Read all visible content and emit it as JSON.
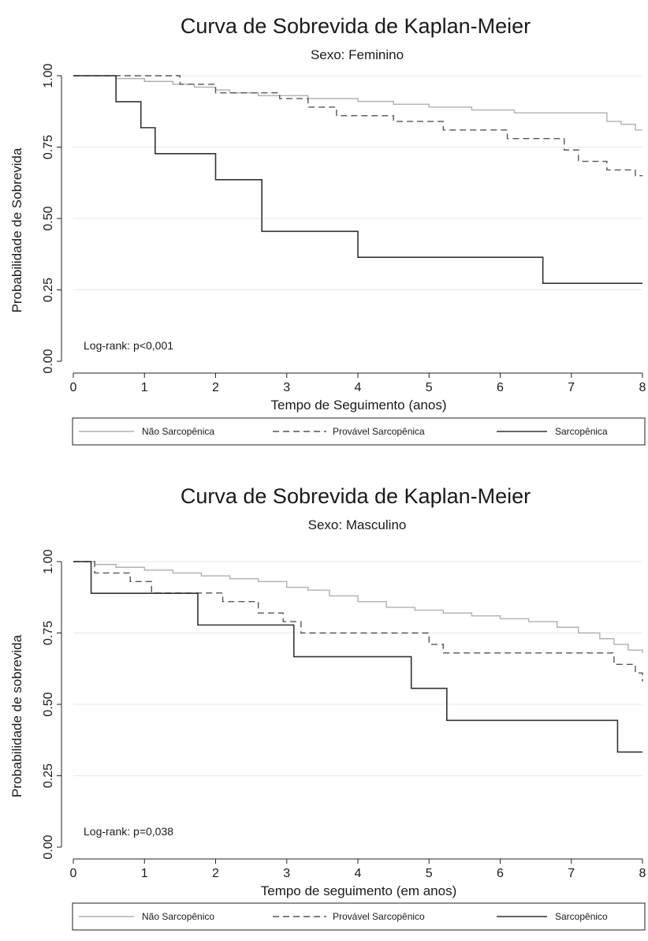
{
  "chart_data": [
    {
      "type": "line",
      "title": "Curva de Sobrevida de Kaplan-Meier",
      "subtitle": "Sexo: Feminino",
      "xlabel": "Tempo de Seguimento (anos)",
      "ylabel": "Probabilidade de Sobrevida",
      "xlim": [
        0,
        8
      ],
      "ylim": [
        0,
        1
      ],
      "x_ticks": [
        "0",
        "1",
        "2",
        "3",
        "4",
        "5",
        "6",
        "7",
        "8"
      ],
      "y_ticks": [
        "0.00",
        "0.25",
        "0.50",
        "0.75",
        "1.00"
      ],
      "grid": true,
      "legend_position": "bottom",
      "annotation": "Log-rank: p<0,001",
      "series": [
        {
          "name": "Não Sarcopênica",
          "style": "solid",
          "color": "#b0b0b0",
          "x": [
            0,
            0.6,
            1.0,
            1.4,
            1.7,
            2.0,
            2.2,
            2.6,
            3.0,
            3.3,
            3.6,
            4.0,
            4.2,
            4.5,
            4.8,
            5.0,
            5.3,
            5.6,
            5.9,
            6.2,
            6.5,
            7.5,
            7.7,
            7.9,
            8.0
          ],
          "y": [
            1.0,
            0.99,
            0.98,
            0.97,
            0.96,
            0.95,
            0.94,
            0.93,
            0.93,
            0.92,
            0.92,
            0.91,
            0.91,
            0.9,
            0.9,
            0.89,
            0.89,
            0.88,
            0.88,
            0.87,
            0.87,
            0.84,
            0.83,
            0.81,
            0.81
          ]
        },
        {
          "name": "Provável Sarcopênica",
          "style": "dashed",
          "color": "#555555",
          "x": [
            0,
            1.5,
            1.7,
            2.0,
            2.9,
            3.3,
            3.7,
            4.5,
            5.2,
            6.1,
            6.9,
            7.1,
            7.5,
            7.9,
            8.0
          ],
          "y": [
            1.0,
            0.97,
            0.97,
            0.94,
            0.92,
            0.89,
            0.86,
            0.84,
            0.81,
            0.78,
            0.74,
            0.7,
            0.67,
            0.65,
            0.65
          ]
        },
        {
          "name": "Sarcopênica",
          "style": "solid",
          "color": "#333333",
          "x": [
            0,
            0.6,
            0.95,
            1.15,
            2.0,
            2.65,
            4.0,
            6.6,
            8.0
          ],
          "y": [
            1.0,
            0.909,
            0.818,
            0.727,
            0.636,
            0.455,
            0.364,
            0.273,
            0.273
          ]
        }
      ]
    },
    {
      "type": "line",
      "title": "Curva de Sobrevida de Kaplan-Meier",
      "subtitle": "Sexo: Masculino",
      "xlabel": "Tempo de seguimento (em anos)",
      "ylabel": "Probabilidade de sobrevida",
      "xlim": [
        0,
        8
      ],
      "ylim": [
        0,
        1
      ],
      "x_ticks": [
        "0",
        "1",
        "2",
        "3",
        "4",
        "5",
        "6",
        "7",
        "8"
      ],
      "y_ticks": [
        "0.00",
        "0.25",
        "0.50",
        "0.75",
        "1.00"
      ],
      "grid": true,
      "legend_position": "bottom",
      "annotation": "Log-rank: p=0,038",
      "series": [
        {
          "name": "Não Sarcopênico",
          "style": "solid",
          "color": "#b0b0b0",
          "x": [
            0,
            0.3,
            0.6,
            1.0,
            1.4,
            1.8,
            2.2,
            2.6,
            3.0,
            3.3,
            3.6,
            4.0,
            4.4,
            4.8,
            5.2,
            5.6,
            6.0,
            6.4,
            6.8,
            7.1,
            7.4,
            7.6,
            7.8,
            8.0
          ],
          "y": [
            1.0,
            0.99,
            0.98,
            0.97,
            0.96,
            0.95,
            0.94,
            0.93,
            0.91,
            0.9,
            0.88,
            0.86,
            0.84,
            0.83,
            0.82,
            0.81,
            0.8,
            0.79,
            0.77,
            0.75,
            0.73,
            0.71,
            0.69,
            0.68
          ]
        },
        {
          "name": "Provável Sarcopênico",
          "style": "dashed",
          "color": "#555555",
          "x": [
            0,
            0.3,
            0.8,
            1.1,
            2.1,
            2.6,
            2.95,
            3.2,
            5.0,
            5.2,
            7.6,
            7.9,
            8.0
          ],
          "y": [
            1.0,
            0.96,
            0.93,
            0.89,
            0.86,
            0.82,
            0.79,
            0.75,
            0.71,
            0.68,
            0.64,
            0.61,
            0.58
          ]
        },
        {
          "name": "Sarcopênico",
          "style": "solid",
          "color": "#333333",
          "x": [
            0,
            0.25,
            1.75,
            3.1,
            4.75,
            5.25,
            7.65,
            8.0
          ],
          "y": [
            1.0,
            0.889,
            0.778,
            0.667,
            0.556,
            0.444,
            0.333,
            0.333
          ]
        }
      ]
    }
  ]
}
